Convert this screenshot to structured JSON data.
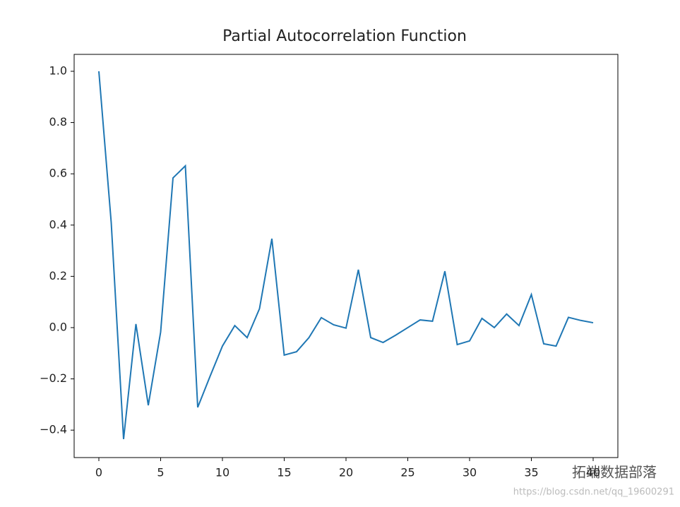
{
  "chart_data": {
    "type": "line",
    "title": "Partial Autocorrelation Function",
    "x": [
      0,
      1,
      2,
      3,
      4,
      5,
      6,
      7,
      8,
      9,
      10,
      11,
      12,
      13,
      14,
      15,
      16,
      17,
      18,
      19,
      20,
      21,
      22,
      23,
      24,
      25,
      26,
      27,
      28,
      29,
      30,
      31,
      32,
      33,
      34,
      35,
      36,
      37,
      38,
      39,
      40
    ],
    "series": [
      {
        "color": "#1f77b4",
        "values": [
          1.0,
          0.41,
          -0.435,
          0.014,
          -0.303,
          -0.017,
          0.584,
          0.631,
          -0.311,
          -0.19,
          -0.072,
          0.008,
          -0.039,
          0.074,
          0.347,
          -0.107,
          -0.094,
          -0.039,
          0.039,
          0.011,
          -0.002,
          0.226,
          -0.039,
          -0.058,
          -0.03,
          0.0,
          0.03,
          0.025,
          0.22,
          -0.066,
          -0.052,
          0.036,
          0.0,
          0.053,
          0.008,
          0.129,
          -0.063,
          -0.072,
          0.04,
          0.028,
          0.019
        ]
      }
    ],
    "xlim": [
      -2,
      42
    ],
    "xticks": [
      0,
      5,
      10,
      15,
      20,
      25,
      30,
      35,
      40
    ],
    "ylim": [
      -0.507,
      1.066
    ],
    "yticks": [
      {
        "value": -0.4,
        "label": "−0.4"
      },
      {
        "value": -0.2,
        "label": "−0.2"
      },
      {
        "value": 0,
        "label": "0.0"
      },
      0.2,
      0.4,
      0.6,
      0.8,
      {
        "value": 1.0,
        "label": "1.0"
      }
    ],
    "grid": false
  },
  "watermark": {
    "brand": "拓端数据部落",
    "url": "https://blog.csdn.net/qq_19600291"
  }
}
